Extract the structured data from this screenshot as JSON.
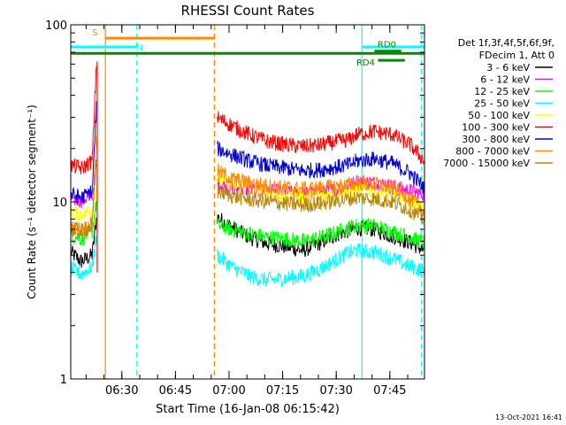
{
  "chart_data": {
    "type": "line",
    "title": "RHESSI Count Rates",
    "xlabel": "Start Time (16-Jan-08 06:15:42)",
    "ylabel": "Count Rate (s⁻¹ detector segment⁻¹)",
    "yscale": "log",
    "ylim": [
      1,
      100
    ],
    "xlim_minutes": [
      0,
      99
    ],
    "x_ticks": [
      {
        "minute": 14.3,
        "label": "06:30"
      },
      {
        "minute": 29.3,
        "label": "06:45"
      },
      {
        "minute": 44.3,
        "label": "07:00"
      },
      {
        "minute": 59.3,
        "label": "07:15"
      },
      {
        "minute": 74.3,
        "label": "07:30"
      },
      {
        "minute": 89.3,
        "label": "07:45"
      }
    ],
    "y_ticks": [
      {
        "value": 1,
        "label": "1"
      },
      {
        "value": 10,
        "label": "10"
      },
      {
        "value": 100,
        "label": "100"
      }
    ],
    "legend_header": [
      "Det 1f,3f,4f,5f,6f,9f,",
      "FDecim 1, Att 0"
    ],
    "legend_placement": "right",
    "series": [
      {
        "name": "3 - 6 keV",
        "color": "#000000",
        "x": [
          0,
          3,
          6,
          7.2,
          8,
          40.5,
          41,
          45,
          50,
          55,
          60,
          65,
          70,
          75,
          78,
          80,
          85,
          90,
          95,
          99
        ],
        "y": [
          5.2,
          4.6,
          5.0,
          8,
          null,
          null,
          8.2,
          7.2,
          6.3,
          5.8,
          5.6,
          5.3,
          5.9,
          6.6,
          6.9,
          7.1,
          7.0,
          6.4,
          5.9,
          5.3
        ]
      },
      {
        "name": "6 - 12 keV",
        "color": "#ff00ff",
        "x": [
          0,
          3,
          6,
          7.2,
          8,
          40.5,
          41,
          45,
          50,
          55,
          60,
          65,
          70,
          75,
          78,
          80,
          85,
          90,
          95,
          99
        ],
        "y": [
          10.5,
          10.2,
          11,
          16,
          null,
          null,
          12.8,
          12.0,
          11.7,
          11.4,
          11.3,
          11.0,
          11.3,
          11.8,
          12.3,
          13.0,
          12.8,
          12.2,
          11.5,
          11.0
        ]
      },
      {
        "name": "12 - 25 keV",
        "color": "#00ff00",
        "x": [
          0,
          3,
          6,
          7.2,
          8,
          40.5,
          41,
          45,
          50,
          55,
          60,
          65,
          70,
          75,
          78,
          80,
          85,
          90,
          95,
          99
        ],
        "y": [
          6.5,
          6.2,
          6.8,
          10,
          null,
          null,
          7.4,
          7.0,
          6.6,
          6.3,
          6.2,
          6.0,
          6.3,
          6.8,
          7.2,
          7.4,
          7.3,
          6.8,
          6.3,
          5.9
        ]
      },
      {
        "name": "25 - 50 keV",
        "color": "#00ffff",
        "x": [
          0,
          3,
          6,
          7.2,
          8,
          40.5,
          41,
          45,
          50,
          55,
          60,
          65,
          70,
          75,
          78,
          80,
          85,
          90,
          95,
          99
        ],
        "y": [
          4.2,
          3.9,
          4.3,
          6.5,
          null,
          null,
          5.0,
          4.3,
          3.8,
          3.6,
          3.7,
          3.8,
          4.2,
          4.8,
          5.2,
          5.3,
          5.2,
          4.8,
          4.3,
          4.1
        ]
      },
      {
        "name": "50 - 100 keV",
        "color": "#ffff00",
        "x": [
          0,
          3,
          6,
          7.2,
          8,
          40.5,
          41,
          45,
          50,
          55,
          60,
          65,
          70,
          75,
          78,
          80,
          85,
          90,
          95,
          99
        ],
        "y": [
          8.8,
          8.5,
          9.0,
          12,
          null,
          null,
          13.5,
          12.5,
          11.8,
          11.2,
          10.8,
          10.5,
          10.8,
          11.2,
          11.5,
          11.8,
          11.5,
          11.0,
          10.0,
          9.2
        ]
      },
      {
        "name": "100 - 300 keV",
        "color": "#ff0000",
        "x": [
          0,
          3,
          6,
          7.2,
          8,
          40.5,
          41,
          45,
          50,
          55,
          60,
          65,
          70,
          75,
          78,
          80,
          85,
          90,
          95,
          99
        ],
        "y": [
          16,
          15.5,
          17,
          62,
          null,
          null,
          30,
          27,
          24,
          22,
          21,
          20.5,
          21,
          22,
          22.5,
          24,
          25,
          24,
          21,
          17
        ]
      },
      {
        "name": "300 - 800 keV",
        "color": "#0000cc",
        "x": [
          0,
          3,
          6,
          7.2,
          8,
          40.5,
          41,
          45,
          50,
          55,
          60,
          65,
          70,
          75,
          78,
          80,
          85,
          90,
          95,
          99
        ],
        "y": [
          11,
          10.5,
          11.5,
          35,
          null,
          null,
          20,
          18.5,
          17,
          16,
          15.5,
          15,
          15.2,
          15.8,
          16.2,
          17,
          17.5,
          16.5,
          14.5,
          12
        ]
      },
      {
        "name": "800 - 7000 keV",
        "color": "#ff8800",
        "x": [
          0,
          3,
          6,
          7.2,
          8,
          40.5,
          41,
          45,
          50,
          55,
          60,
          65,
          70,
          75,
          78,
          80,
          85,
          90,
          95,
          99
        ],
        "y": [
          7.2,
          7.0,
          7.5,
          25,
          null,
          null,
          15,
          13.5,
          12.8,
          12.3,
          12.0,
          11.8,
          12.0,
          12.3,
          12.5,
          12.8,
          12.6,
          12.0,
          10.5,
          8.8
        ]
      },
      {
        "name": "7000 - 15000 keV",
        "color": "#b8860b",
        "x": [
          0,
          3,
          6,
          7.2,
          8,
          40.5,
          41,
          45,
          50,
          55,
          60,
          65,
          70,
          75,
          78,
          80,
          85,
          90,
          95,
          99
        ],
        "y": [
          7.0,
          6.8,
          7.3,
          18,
          null,
          null,
          11.5,
          10.8,
          10.3,
          10.0,
          9.8,
          9.6,
          9.8,
          10.2,
          10.4,
          10.6,
          10.4,
          10.0,
          9.0,
          8.0
        ]
      }
    ],
    "annotations": [
      {
        "label": "S",
        "color": "#ff8800",
        "kind": "bar",
        "x1": 9.7,
        "x2": 40.2,
        "y": 84
      },
      {
        "label": "N",
        "color": "#00ffff",
        "kind": "bar",
        "x1": 0,
        "x2": 18.5,
        "y": 75
      },
      {
        "label": "",
        "color": "#00ffff",
        "kind": "bar",
        "x1": 81.5,
        "x2": 99,
        "y": 75
      },
      {
        "label": "",
        "color": "#008800",
        "kind": "bar",
        "x1": 0,
        "x2": 99,
        "y": 69
      },
      {
        "label": "RD0",
        "color": "#008800",
        "kind": "bar",
        "x1": 85,
        "x2": 92.5,
        "y": 71
      },
      {
        "label": "RD4",
        "color": "#008800",
        "kind": "bar",
        "x1": 86,
        "x2": 93.5,
        "y": 63
      }
    ],
    "vertical_lines": [
      {
        "minute": 9.7,
        "color": "#ff8800",
        "style": "solid"
      },
      {
        "minute": 18.5,
        "color": "#00ffff",
        "style": "dashed"
      },
      {
        "minute": 40.2,
        "color": "#ff8800",
        "style": "dashed"
      },
      {
        "minute": 81.5,
        "color": "#00ffff",
        "style": "solid"
      },
      {
        "minute": 98.2,
        "color": "#00ffff",
        "style": "dashed"
      }
    ]
  },
  "footer_date": "13-Oct-2021 16:41"
}
